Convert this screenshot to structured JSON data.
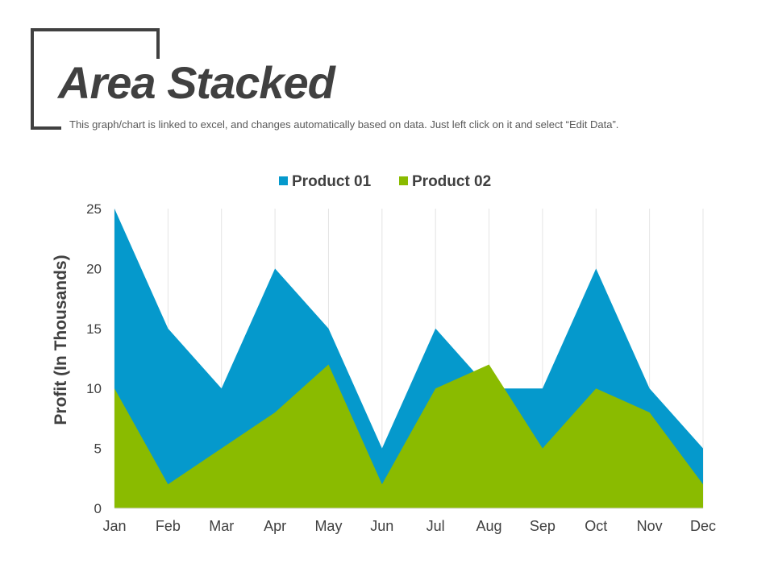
{
  "header": {
    "title": "Area Stacked",
    "subtitle": "This graph/chart is linked to excel, and changes automatically based on data. Just left click on it and select “Edit Data”."
  },
  "chart_data": {
    "type": "area",
    "stacked": false,
    "categories": [
      "Jan",
      "Feb",
      "Mar",
      "Apr",
      "May",
      "Jun",
      "Jul",
      "Aug",
      "Sep",
      "Oct",
      "Nov",
      "Dec"
    ],
    "series": [
      {
        "name": "Product 01",
        "color": "#0599cc",
        "values": [
          25,
          15,
          10,
          20,
          15,
          5,
          15,
          10,
          10,
          20,
          10,
          5
        ]
      },
      {
        "name": "Product 02",
        "color": "#8abb00",
        "values": [
          10,
          2,
          5,
          8,
          12,
          2,
          10,
          12,
          5,
          10,
          8,
          2
        ]
      }
    ],
    "ylabel": "Profit (In Thousands)",
    "xlabel": "",
    "ylim": [
      0,
      25
    ],
    "yticks": [
      0,
      5,
      10,
      15,
      20,
      25
    ],
    "grid": "vertical",
    "legend": "top-center"
  }
}
